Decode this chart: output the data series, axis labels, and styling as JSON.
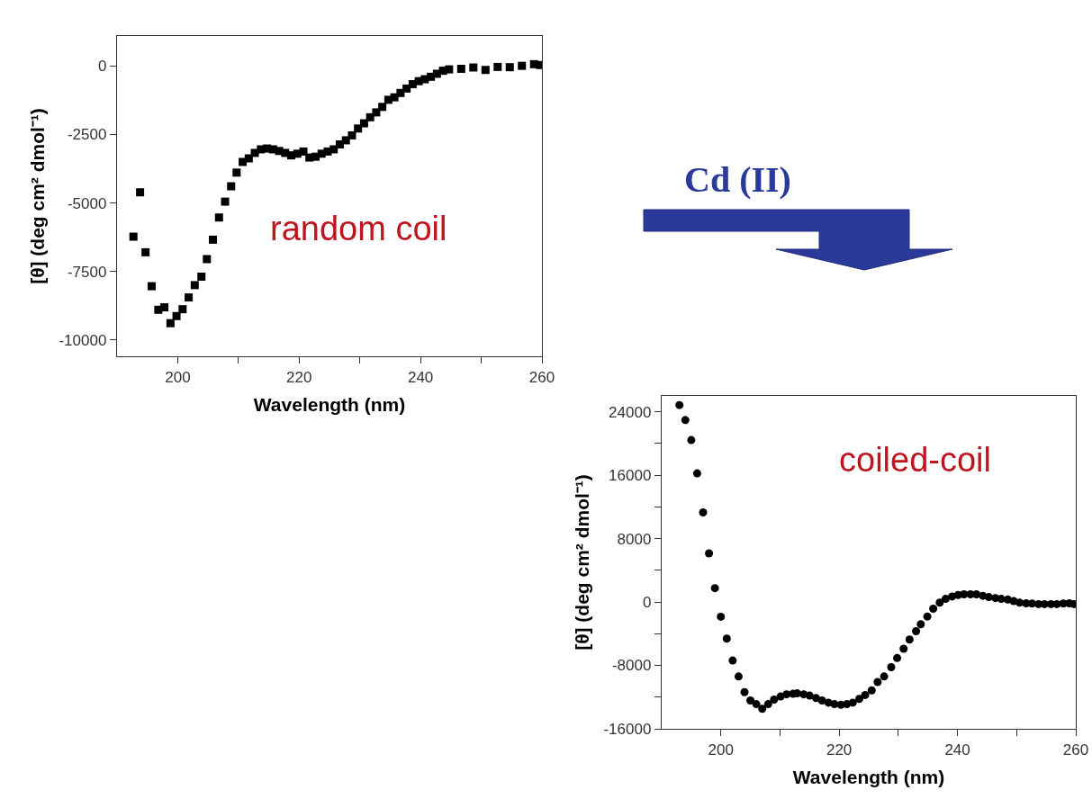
{
  "chart_data": [
    {
      "type": "scatter",
      "xlabel": "Wavelength (nm)",
      "ylabel": "[θ] (deg cm² dmol⁻¹)",
      "marker": "square",
      "grid": false,
      "annotations": [
        "random coil",
        "Cd (II)"
      ],
      "xlim": [
        190,
        260
      ],
      "xticks": [
        200,
        {
          "value": 210,
          "label": null
        },
        220,
        {
          "value": 230,
          "label": null
        },
        240,
        {
          "value": 250,
          "label": null
        },
        260
      ],
      "ylim": [
        -10600,
        1100
      ],
      "yticks": [
        -10000,
        -7500,
        -5000,
        -2500,
        0
      ],
      "series": [
        {
          "color": "#000000",
          "x": [
            192.7,
            193.8,
            194.7,
            195.7,
            196.8,
            197.8,
            198.8,
            199.8,
            200.8,
            201.8,
            202.8,
            203.9,
            204.8,
            205.8,
            206.8,
            207.8,
            208.8,
            209.7,
            210.7,
            211.7,
            212.7,
            213.7,
            214.7,
            215.7,
            216.7,
            217.7,
            218.7,
            219.7,
            220.7,
            221.7,
            222.7,
            223.7,
            224.7,
            225.7,
            226.7,
            227.7,
            228.7,
            229.7,
            230.7,
            231.7,
            232.7,
            233.7,
            234.7,
            235.7,
            236.7,
            237.7,
            238.7,
            239.7,
            240.7,
            241.7,
            242.7,
            243.7,
            244.7,
            246.7,
            248.7,
            250.7,
            252.7,
            254.7,
            256.7,
            258.7,
            259.7
          ],
          "values": [
            -6230,
            -4610,
            -6800,
            -8040,
            -8900,
            -8810,
            -9390,
            -9130,
            -8880,
            -8450,
            -8000,
            -7690,
            -7050,
            -6340,
            -5530,
            -4950,
            -4390,
            -3890,
            -3500,
            -3370,
            -3170,
            -3040,
            -3010,
            -3040,
            -3100,
            -3170,
            -3260,
            -3200,
            -3120,
            -3340,
            -3310,
            -3200,
            -3120,
            -3040,
            -2860,
            -2710,
            -2530,
            -2280,
            -2090,
            -1870,
            -1690,
            -1490,
            -1230,
            -1140,
            -980,
            -820,
            -660,
            -550,
            -480,
            -390,
            -280,
            -170,
            -120,
            -100,
            -50,
            -140,
            -30,
            -40,
            10,
            70,
            40
          ]
        }
      ]
    },
    {
      "type": "scatter",
      "xlabel": "Wavelength (nm)",
      "ylabel": "[θ] (deg cm² dmol⁻¹)",
      "marker": "circle",
      "grid": false,
      "annotations": [
        "coiled-coil"
      ],
      "xlim": [
        190,
        260
      ],
      "xticks": [
        200,
        {
          "value": 210,
          "label": null
        },
        220,
        {
          "value": 230,
          "label": null
        },
        240,
        {
          "value": 250,
          "label": null
        },
        260
      ],
      "ylim": [
        -16000,
        26000
      ],
      "yticks": [
        -16000,
        {
          "value": -12000,
          "label": null
        },
        -8000,
        {
          "value": -4000,
          "label": null
        },
        0,
        {
          "value": 4000,
          "label": null
        },
        8000,
        {
          "value": 12000,
          "label": null
        },
        16000,
        {
          "value": 20000,
          "label": null
        },
        24000
      ],
      "series": [
        {
          "color": "#000000",
          "x": [
            193.0,
            194.0,
            195.0,
            196.0,
            197.0,
            198.0,
            199.0,
            200.0,
            201.0,
            202.0,
            203.0,
            204.0,
            205.0,
            206.0,
            207.0,
            208.0,
            209.0,
            210.1,
            211.1,
            212.2,
            212.9,
            214.0,
            215.0,
            216.1,
            217.1,
            218.2,
            219.2,
            220.3,
            221.3,
            222.3,
            223.4,
            224.4,
            225.5,
            226.5,
            227.6,
            228.8,
            229.8,
            230.9,
            231.9,
            233.0,
            233.8,
            234.9,
            235.9,
            237.0,
            238.0,
            239.1,
            240.1,
            241.1,
            242.2,
            243.2,
            244.3,
            245.3,
            246.4,
            247.4,
            248.5,
            249.5,
            250.5,
            251.6,
            252.6,
            253.7,
            254.7,
            255.8,
            256.8,
            257.9,
            258.9,
            259.7
          ],
          "values": [
            24850,
            22950,
            20430,
            16230,
            11300,
            6140,
            1750,
            -1860,
            -4620,
            -7380,
            -9400,
            -11380,
            -12430,
            -12890,
            -13480,
            -12890,
            -12310,
            -11920,
            -11650,
            -11570,
            -11530,
            -11650,
            -11810,
            -12120,
            -12430,
            -12700,
            -12890,
            -12970,
            -12890,
            -12700,
            -12230,
            -11730,
            -11150,
            -10100,
            -9400,
            -8230,
            -7070,
            -5900,
            -4740,
            -3690,
            -2800,
            -1830,
            -850,
            -80,
            390,
            700,
            890,
            970,
            970,
            970,
            780,
            620,
            500,
            390,
            310,
            120,
            -80,
            -160,
            -190,
            -270,
            -270,
            -270,
            -270,
            -190,
            -160,
            -270
          ]
        }
      ]
    }
  ]
}
